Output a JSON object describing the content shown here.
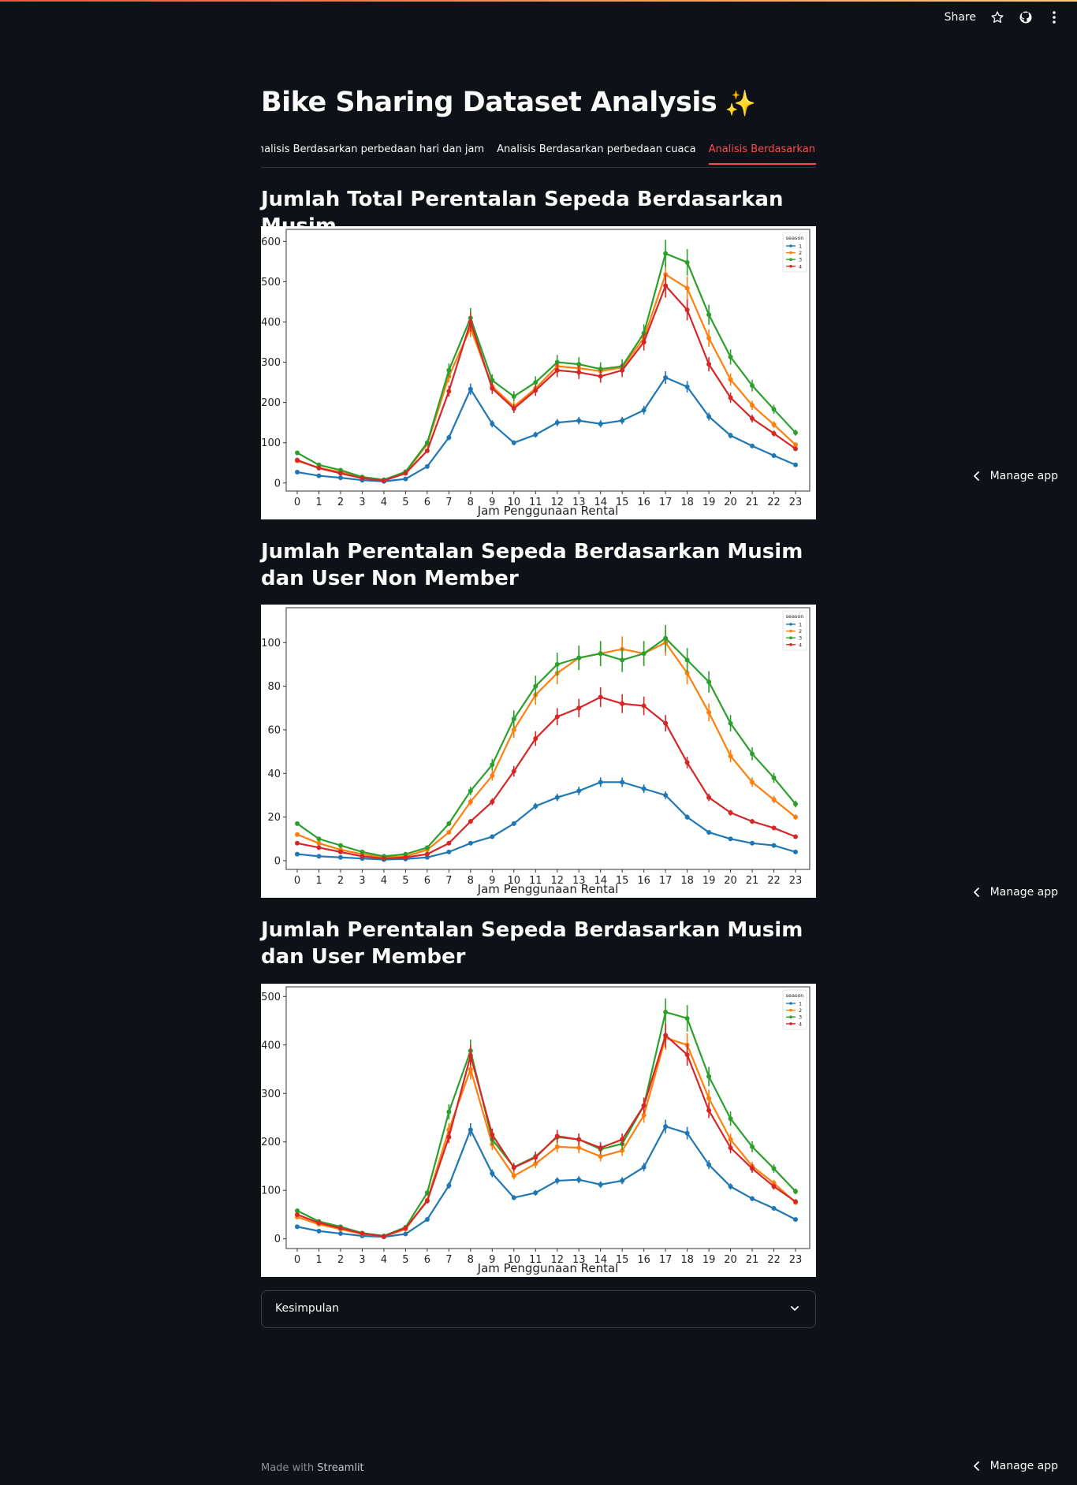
{
  "toolbar": {
    "share_label": "Share",
    "icons": [
      "star-icon",
      "github-icon",
      "more-vertical-icon"
    ]
  },
  "page": {
    "title": "Bike Sharing Dataset Analysis",
    "title_emoji": "✨"
  },
  "tabs": [
    {
      "label": "Analisis Berdasarkan perbedaan hari dan jam",
      "active": false
    },
    {
      "label": "Analisis Berdasarkan perbedaan cuaca",
      "active": false
    },
    {
      "label": "Analisis Berdasarkan perbedaan musim",
      "active": true
    }
  ],
  "sections": [
    {
      "title": "Jumlah Total Perentalan Sepeda Berdasarkan Musim"
    },
    {
      "title": "Jumlah Perentalan Sepeda Berdasarkan Musim dan User Non Member"
    },
    {
      "title": "Jumlah Perentalan Sepeda Berdasarkan Musim dan User Member"
    }
  ],
  "colors": {
    "background": "#0e1117",
    "accent": "#ff4b4b",
    "season_1": "#1f77b4",
    "season_2": "#ff7f0e",
    "season_3": "#2ca02c",
    "season_4": "#d62728"
  },
  "chart_data": [
    {
      "type": "line",
      "xlabel": "Jam Penggunaan Rental",
      "ylabel": "",
      "legend_title": "season",
      "legend_position": "top-right",
      "x": [
        0,
        1,
        2,
        3,
        4,
        5,
        6,
        7,
        8,
        9,
        10,
        11,
        12,
        13,
        14,
        15,
        16,
        17,
        18,
        19,
        20,
        21,
        22,
        23
      ],
      "ylim": [
        -20,
        630
      ],
      "yticks": [
        0,
        100,
        200,
        300,
        400,
        500,
        600
      ],
      "grid": false,
      "error_bars": true,
      "series": [
        {
          "name": "1",
          "values": [
            27,
            18,
            13,
            7,
            4,
            10,
            41,
            113,
            233,
            147,
            100,
            120,
            150,
            155,
            147,
            155,
            181,
            262,
            239,
            165,
            118,
            92,
            68,
            45
          ]
        },
        {
          "name": "2",
          "values": [
            55,
            38,
            27,
            13,
            7,
            26,
            96,
            265,
            385,
            240,
            190,
            235,
            290,
            285,
            278,
            287,
            360,
            518,
            484,
            360,
            257,
            193,
            145,
            95
          ]
        },
        {
          "name": "3",
          "values": [
            75,
            45,
            32,
            15,
            8,
            28,
            100,
            280,
            410,
            255,
            215,
            250,
            300,
            295,
            283,
            290,
            372,
            570,
            548,
            418,
            313,
            242,
            183,
            125
          ]
        },
        {
          "name": "4",
          "values": [
            57,
            37,
            24,
            12,
            6,
            24,
            80,
            228,
            400,
            235,
            185,
            230,
            280,
            275,
            265,
            280,
            350,
            490,
            430,
            295,
            212,
            160,
            123,
            85
          ]
        }
      ]
    },
    {
      "type": "line",
      "xlabel": "Jam Penggunaan Rental",
      "ylabel": "",
      "legend_title": "season",
      "legend_position": "top-right",
      "x": [
        0,
        1,
        2,
        3,
        4,
        5,
        6,
        7,
        8,
        9,
        10,
        11,
        12,
        13,
        14,
        15,
        16,
        17,
        18,
        19,
        20,
        21,
        22,
        23
      ],
      "ylim": [
        -4,
        116
      ],
      "yticks": [
        0,
        20,
        40,
        60,
        80,
        100
      ],
      "grid": false,
      "error_bars": true,
      "series": [
        {
          "name": "1",
          "values": [
            3,
            2,
            1.5,
            1,
            0.5,
            0.8,
            1.5,
            4,
            8,
            11,
            17,
            25,
            29,
            32,
            36,
            36,
            33,
            30,
            20,
            13,
            10,
            8,
            7,
            4
          ]
        },
        {
          "name": "2",
          "values": [
            12,
            8,
            5,
            3,
            1.5,
            2,
            5,
            13,
            27,
            39,
            60,
            76,
            86,
            93,
            95,
            97,
            95,
            100,
            86,
            68,
            48,
            36,
            28,
            20
          ]
        },
        {
          "name": "3",
          "values": [
            17,
            10,
            7,
            4,
            2,
            3,
            6,
            17,
            32,
            44,
            65,
            80,
            90,
            93,
            95,
            92,
            95,
            102,
            92,
            82,
            63,
            49,
            38,
            26
          ]
        },
        {
          "name": "4",
          "values": [
            8,
            6,
            4,
            2,
            1,
            1.5,
            3,
            8,
            18,
            27,
            41,
            56,
            66,
            70,
            75,
            72,
            71,
            63,
            45,
            29,
            22,
            18,
            15,
            11
          ]
        }
      ]
    },
    {
      "type": "line",
      "xlabel": "Jam Penggunaan Rental",
      "ylabel": "",
      "legend_title": "season",
      "legend_position": "top-right",
      "x": [
        0,
        1,
        2,
        3,
        4,
        5,
        6,
        7,
        8,
        9,
        10,
        11,
        12,
        13,
        14,
        15,
        16,
        17,
        18,
        19,
        20,
        21,
        22,
        23
      ],
      "ylim": [
        -20,
        520
      ],
      "yticks": [
        0,
        100,
        200,
        300,
        400,
        500
      ],
      "grid": false,
      "error_bars": true,
      "series": [
        {
          "name": "1",
          "values": [
            25,
            16,
            11,
            6,
            4,
            10,
            40,
            110,
            225,
            135,
            85,
            95,
            120,
            122,
            112,
            120,
            148,
            232,
            218,
            153,
            108,
            83,
            63,
            40
          ]
        },
        {
          "name": "2",
          "values": [
            45,
            30,
            20,
            10,
            5,
            20,
            80,
            225,
            350,
            195,
            130,
            155,
            190,
            188,
            170,
            182,
            255,
            415,
            400,
            290,
            205,
            150,
            115,
            75
          ]
        },
        {
          "name": "3",
          "values": [
            58,
            36,
            25,
            12,
            6,
            24,
            95,
            262,
            388,
            205,
            148,
            170,
            210,
            205,
            185,
            196,
            275,
            468,
            455,
            335,
            248,
            190,
            145,
            98
          ]
        },
        {
          "name": "4",
          "values": [
            50,
            33,
            22,
            11,
            5,
            22,
            78,
            210,
            378,
            215,
            147,
            168,
            212,
            205,
            188,
            205,
            275,
            420,
            380,
            265,
            188,
            145,
            108,
            77
          ]
        }
      ]
    }
  ],
  "expander": {
    "label": "Kesimpulan"
  },
  "footer": {
    "prefix": "Made with",
    "brand": "Streamlit"
  },
  "manage_app": {
    "label": "Manage app"
  }
}
